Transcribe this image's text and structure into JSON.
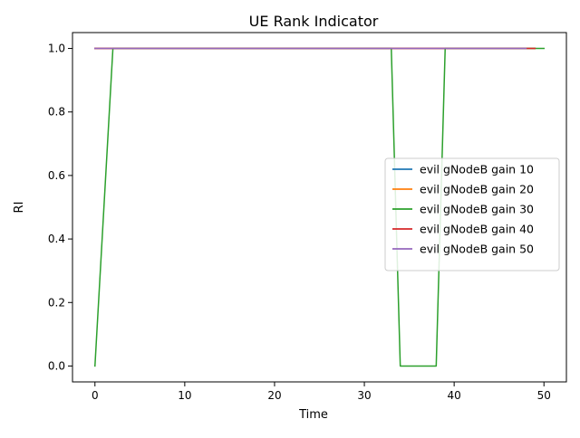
{
  "chart_data": {
    "type": "line",
    "title": "UE Rank Indicator",
    "xlabel": "Time",
    "ylabel": "RI",
    "xlim": [
      -2.5,
      52.5
    ],
    "ylim": [
      -0.05,
      1.05
    ],
    "xticks": [
      0,
      10,
      20,
      30,
      40,
      50
    ],
    "yticks": [
      0.0,
      0.2,
      0.4,
      0.6,
      0.8,
      1.0
    ],
    "ytick_labels": [
      "0.0",
      "0.2",
      "0.4",
      "0.6",
      "0.8",
      "1.0"
    ],
    "grid": false,
    "legend_position": "center-right",
    "series": [
      {
        "name": "evil gNodeB gain 10",
        "color": "#1f77b4",
        "x": [
          0,
          49
        ],
        "y": [
          1,
          1
        ]
      },
      {
        "name": "evil gNodeB gain 20",
        "color": "#ff7f0e",
        "x": [
          0,
          49
        ],
        "y": [
          1,
          1
        ]
      },
      {
        "name": "evil gNodeB gain 30",
        "color": "#2ca02c",
        "x": [
          0,
          2,
          33,
          34,
          38,
          39,
          50
        ],
        "y": [
          0,
          1,
          1,
          0,
          0,
          1,
          1
        ]
      },
      {
        "name": "evil gNodeB gain 40",
        "color": "#d62728",
        "x": [
          0,
          49
        ],
        "y": [
          1,
          1
        ]
      },
      {
        "name": "evil gNodeB gain 50",
        "color": "#9467bd",
        "x": [
          0,
          48
        ],
        "y": [
          1,
          1
        ]
      }
    ]
  }
}
